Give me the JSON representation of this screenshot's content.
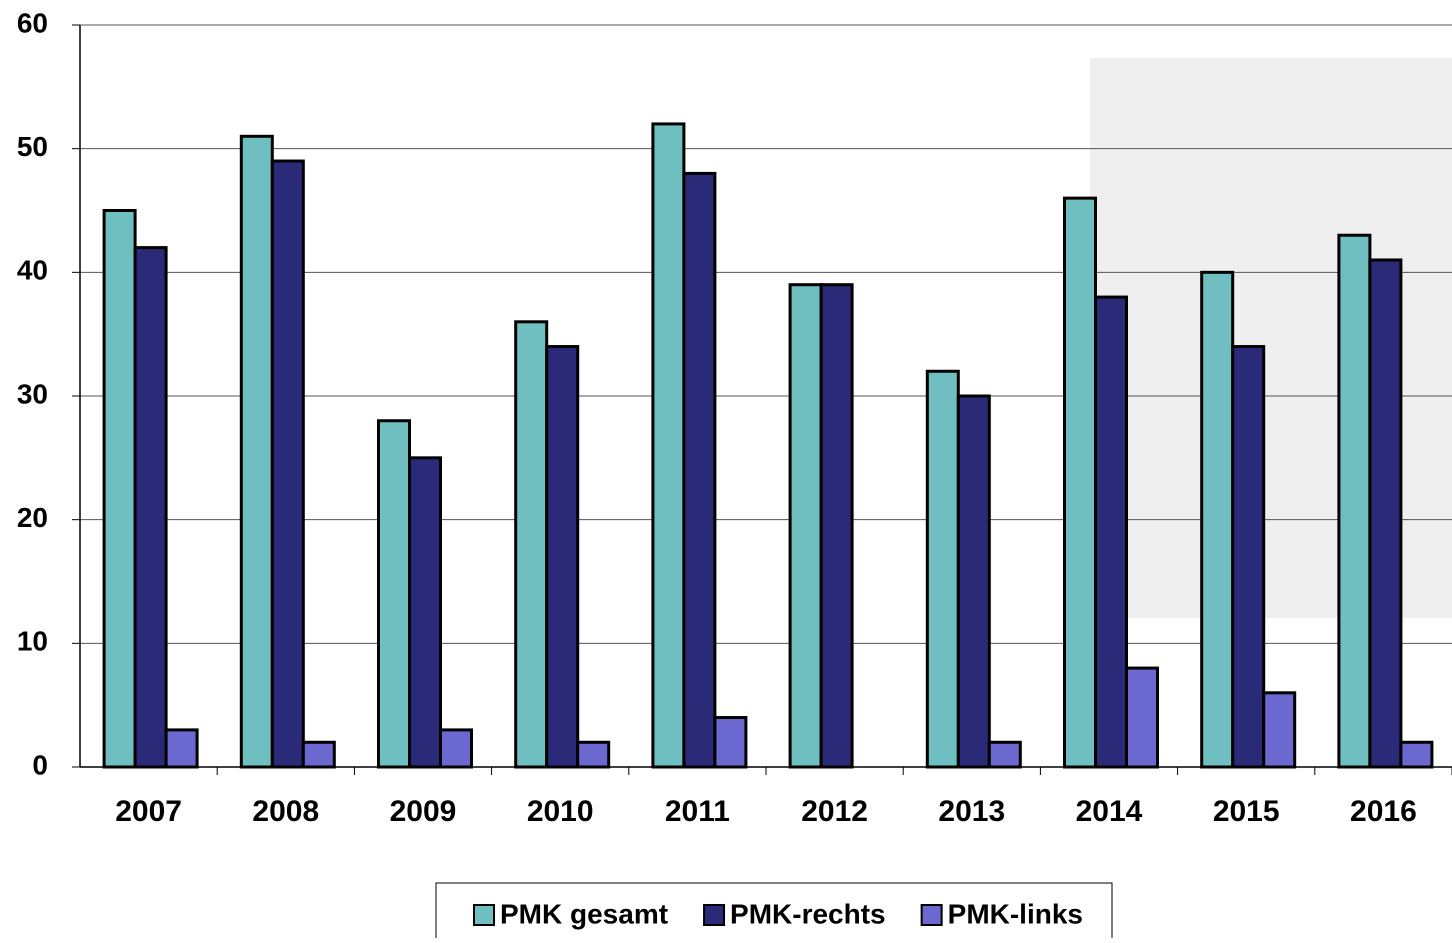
{
  "chart_data": {
    "type": "bar",
    "categories": [
      "2007",
      "2008",
      "2009",
      "2010",
      "2011",
      "2012",
      "2013",
      "2014",
      "2015",
      "2016"
    ],
    "series": [
      {
        "name": "PMK gesamt",
        "color": "#70bfc0",
        "values": [
          45,
          51,
          28,
          36,
          52,
          39,
          32,
          46,
          40,
          43
        ]
      },
      {
        "name": "PMK-rechts",
        "color": "#2b2a78",
        "values": [
          42,
          49,
          25,
          34,
          48,
          39,
          30,
          38,
          34,
          41
        ]
      },
      {
        "name": "PMK-links",
        "color": "#6b68d0",
        "values": [
          3,
          2,
          3,
          2,
          4,
          0,
          2,
          8,
          6,
          2
        ]
      }
    ],
    "ylim": [
      0,
      60
    ],
    "yticks": [
      0,
      10,
      20,
      30,
      40,
      50,
      60
    ],
    "grid": true,
    "legend": "bottom"
  }
}
